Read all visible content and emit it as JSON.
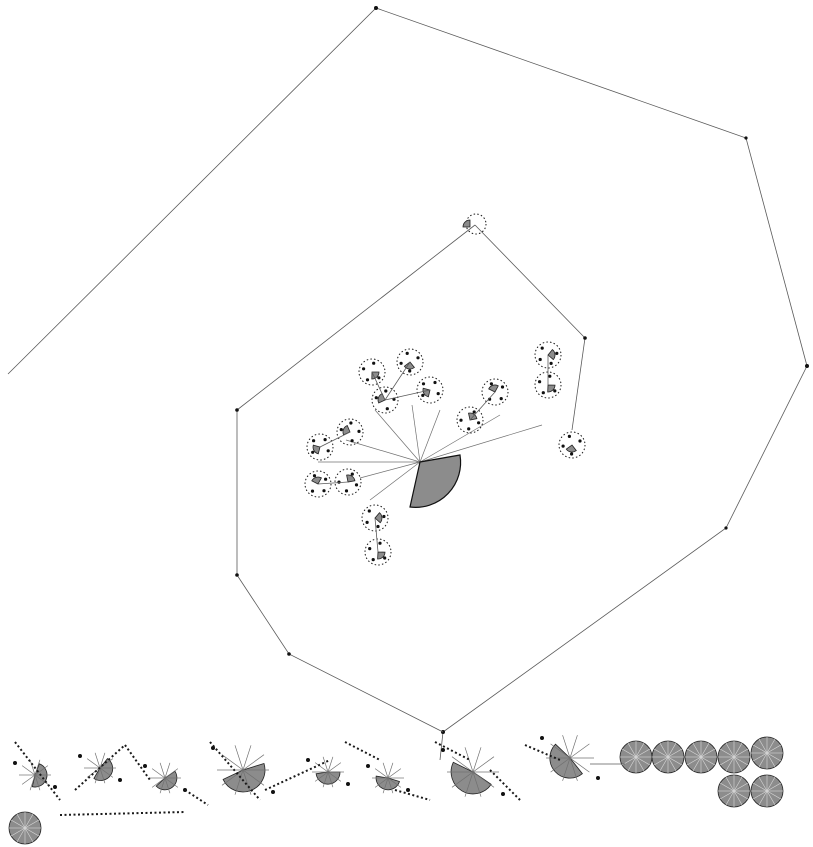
{
  "figure": {
    "kind": "fractal-tree-layout",
    "colors": {
      "background": "#ffffff",
      "edge": "#5a5a5a",
      "node": "#111111",
      "fill": "#8c8c8c"
    },
    "hub": {
      "wedge_start_deg": -20,
      "wedge_end_deg": 100
    },
    "outer_ring_nodes": 8,
    "inner_ring_nodes": 6,
    "subclusters": 12,
    "bottom_strip_groups": 5
  }
}
